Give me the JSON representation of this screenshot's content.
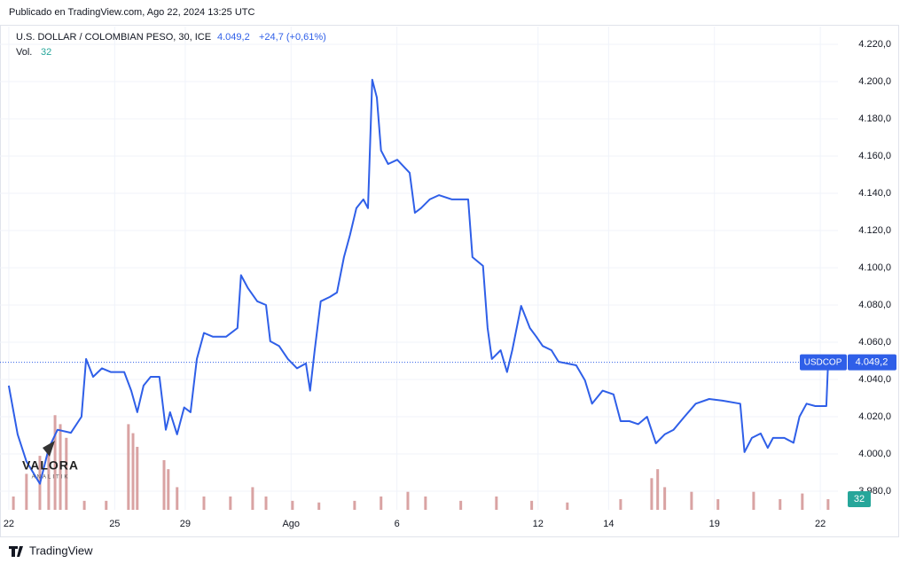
{
  "published": "Publicado en TradingView.com, Ago 22, 2024 13:25 UTC",
  "brand": "TradingView",
  "watermark": {
    "title": "VALORA",
    "subtitle": "ANALITIK"
  },
  "chart_data": {
    "type": "line",
    "title": "U.S. DOLLAR / COLOMBIAN PESO, 30, ICE",
    "price_label": "4.049,2",
    "change_label": "+24,7 (+0,61%)",
    "symbol": "USDCOP",
    "grid": true,
    "xlim": [
      -0.25,
      23.5
    ],
    "xticks": [
      {
        "value": 0,
        "label": "22"
      },
      {
        "value": 3,
        "label": "25"
      },
      {
        "value": 5,
        "label": "29"
      },
      {
        "value": 8,
        "label": "Ago"
      },
      {
        "value": 11,
        "label": "6"
      },
      {
        "value": 15,
        "label": "12"
      },
      {
        "value": 17,
        "label": "14"
      },
      {
        "value": 20,
        "label": "19"
      },
      {
        "value": 23,
        "label": "22"
      }
    ],
    "ylim": [
      3970,
      4229.5
    ],
    "yticks": [
      {
        "value": 3980,
        "label": "3.980,0"
      },
      {
        "value": 4000,
        "label": "4.000,0"
      },
      {
        "value": 4020,
        "label": "4.020,0"
      },
      {
        "value": 4040,
        "label": "4.040,0"
      },
      {
        "value": 4060,
        "label": "4.060,0"
      },
      {
        "value": 4080,
        "label": "4.080,0"
      },
      {
        "value": 4100,
        "label": "4.100,0"
      },
      {
        "value": 4120,
        "label": "4.120,0"
      },
      {
        "value": 4140,
        "label": "4.140,0"
      },
      {
        "value": 4160,
        "label": "4.160,0"
      },
      {
        "value": 4180,
        "label": "4.180,0"
      },
      {
        "value": 4200,
        "label": "4.200,0"
      },
      {
        "value": 4220,
        "label": "4.220,0"
      }
    ],
    "y2lim": [
      0,
      1450
    ],
    "series": [
      {
        "name": "USDCOP",
        "color": "#2f5fe8",
        "x": [
          0,
          0.25,
          0.5,
          0.88,
          1.13,
          1.38,
          1.76,
          2.06,
          2.19,
          2.39,
          2.64,
          2.89,
          3.27,
          3.47,
          3.64,
          3.82,
          4.02,
          4.27,
          4.45,
          4.57,
          4.77,
          4.97,
          5.15,
          5.33,
          5.53,
          5.78,
          6.16,
          6.48,
          6.58,
          6.78,
          7.04,
          7.29,
          7.41,
          7.66,
          7.91,
          8.17,
          8.42,
          8.54,
          8.67,
          8.84,
          9.1,
          9.3,
          9.5,
          9.67,
          9.85,
          10.05,
          10.18,
          10.3,
          10.43,
          10.55,
          10.75,
          11.01,
          11.36,
          11.51,
          11.68,
          11.93,
          12.19,
          12.56,
          13.02,
          13.14,
          13.44,
          13.57,
          13.69,
          13.94,
          14.12,
          14.27,
          14.52,
          14.77,
          14.95,
          15.13,
          15.38,
          15.58,
          16.08,
          16.33,
          16.53,
          16.83,
          17.14,
          17.34,
          17.59,
          17.84,
          18.09,
          18.34,
          18.59,
          18.84,
          19.15,
          19.47,
          19.85,
          20.23,
          20.73,
          20.85,
          21.06,
          21.31,
          21.51,
          21.66,
          21.98,
          22.24,
          22.41,
          22.61,
          22.86,
          23.17,
          23.22
        ],
        "values": [
          4036.7,
          4010.5,
          3996,
          3984,
          4003,
          4013,
          4011.4,
          4020,
          4051,
          4041.4,
          4046,
          4044,
          4044,
          4034,
          4022.4,
          4036.7,
          4041.4,
          4041.4,
          4013,
          4022.4,
          4010.5,
          4025,
          4022.4,
          4051,
          4065,
          4063,
          4063,
          4067.6,
          4096,
          4089,
          4082,
          4080,
          4060.5,
          4058,
          4051,
          4046,
          4048.6,
          4034,
          4055.7,
          4082,
          4084.3,
          4086.7,
          4105.7,
          4117.6,
          4132,
          4136.7,
          4132,
          4201,
          4191.4,
          4163,
          4155.7,
          4158,
          4151,
          4129.5,
          4132,
          4136.7,
          4139,
          4136.7,
          4136.7,
          4105.7,
          4101,
          4067.6,
          4051,
          4055.7,
          4044,
          4055.7,
          4079.5,
          4067.6,
          4063,
          4058,
          4055.7,
          4049.5,
          4047.6,
          4039.5,
          4027,
          4034,
          4032,
          4017.6,
          4017.6,
          4016,
          4020,
          4005.7,
          4010.5,
          4013,
          4020,
          4027,
          4029.5,
          4028.6,
          4027,
          4001,
          4008.6,
          4011,
          4003.3,
          4008.6,
          4008.6,
          4006,
          4020,
          4027,
          4025.7,
          4025.7,
          4049.2
        ]
      },
      {
        "name": "Vol.",
        "color": "#d9a3a3",
        "axis": "y2",
        "x": [
          0.13,
          0.5,
          0.88,
          1.13,
          1.31,
          1.46,
          1.63,
          2.14,
          2.76,
          3.39,
          3.52,
          3.64,
          4.4,
          4.52,
          4.77,
          5.53,
          6.28,
          6.91,
          7.29,
          8.04,
          8.79,
          9.8,
          10.55,
          11.31,
          11.81,
          12.81,
          13.82,
          14.82,
          15.83,
          17.34,
          18.22,
          18.39,
          18.59,
          19.35,
          20.1,
          21.11,
          21.86,
          22.49,
          23.22
        ],
        "values": [
          40,
          108,
          162,
          189,
          284,
          257,
          216,
          27,
          27,
          257,
          230,
          189,
          149,
          122,
          68,
          40,
          40,
          68,
          40,
          27,
          22,
          27,
          40,
          54,
          40,
          27,
          40,
          27,
          22,
          32,
          95,
          122,
          68,
          54,
          32,
          54,
          32,
          49,
          32
        ]
      }
    ]
  }
}
